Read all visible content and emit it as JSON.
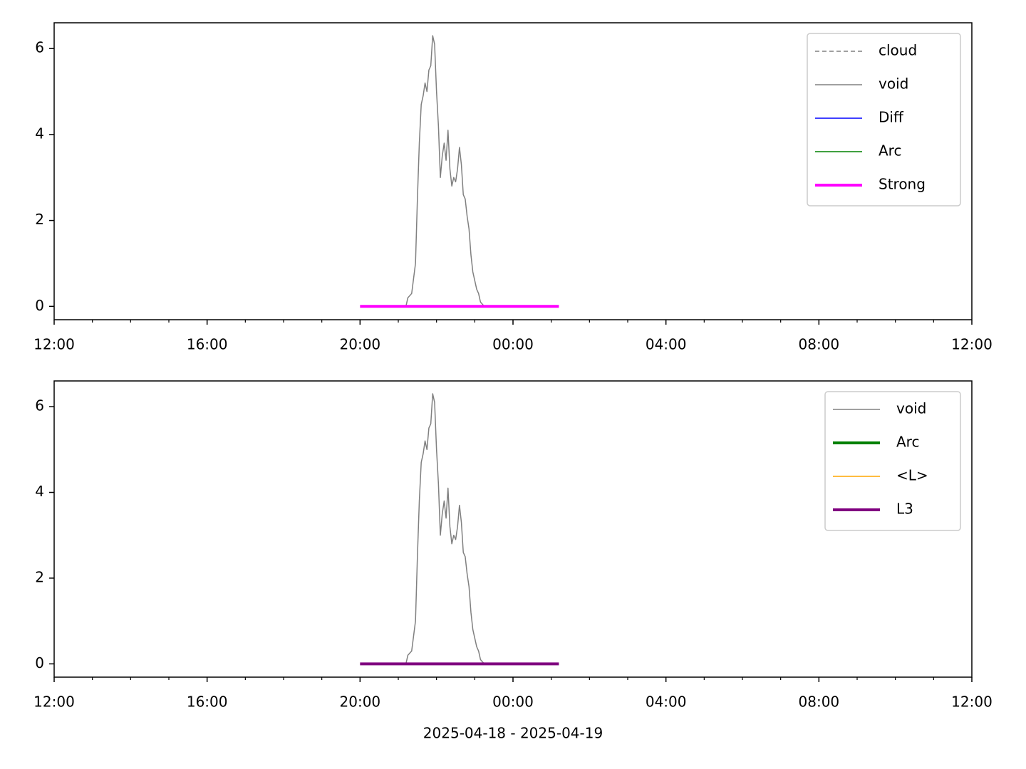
{
  "chart_data": [
    {
      "type": "line",
      "xlim": [
        0,
        24
      ],
      "ylim": [
        -0.31,
        6.6
      ],
      "xticks": [
        {
          "value": 0,
          "label": "12:00"
        },
        {
          "value": 4,
          "label": "16:00"
        },
        {
          "value": 8,
          "label": "20:00"
        },
        {
          "value": 12,
          "label": "00:00"
        },
        {
          "value": 16,
          "label": "04:00"
        },
        {
          "value": 20,
          "label": "08:00"
        },
        {
          "value": 24,
          "label": "12:00"
        }
      ],
      "xminorticks": [
        1,
        2,
        3,
        5,
        6,
        7,
        9,
        10,
        11,
        13,
        14,
        15,
        17,
        18,
        19,
        21,
        22,
        23
      ],
      "yticks": [
        0,
        2,
        4,
        6
      ],
      "legend": "upper right",
      "series": [
        {
          "name": "cloud",
          "color": "#808080",
          "dash": true,
          "width": 1.5,
          "x": [],
          "values": []
        },
        {
          "name": "void",
          "color": "#808080",
          "dash": false,
          "width": 1.5,
          "x": [
            9.2,
            9.25,
            9.35,
            9.45,
            9.5,
            9.55,
            9.6,
            9.65,
            9.7,
            9.75,
            9.8,
            9.85,
            9.9,
            9.95,
            10.0,
            10.05,
            10.1,
            10.15,
            10.2,
            10.25,
            10.3,
            10.35,
            10.4,
            10.45,
            10.5,
            10.55,
            10.6,
            10.65,
            10.7,
            10.75,
            10.8,
            10.85,
            10.9,
            10.95,
            11.0,
            11.05,
            11.1,
            11.15,
            11.25
          ],
          "values": [
            0,
            0.2,
            0.3,
            1,
            2.5,
            3.8,
            4.7,
            4.9,
            5.2,
            5.0,
            5.5,
            5.6,
            6.3,
            6.1,
            5.0,
            4.2,
            3.0,
            3.5,
            3.8,
            3.4,
            4.1,
            3.2,
            2.8,
            3.0,
            2.9,
            3.2,
            3.7,
            3.3,
            2.6,
            2.5,
            2.1,
            1.8,
            1.2,
            0.8,
            0.6,
            0.4,
            0.3,
            0.1,
            0
          ]
        },
        {
          "name": "Diff",
          "color": "#0000ff",
          "dash": false,
          "width": 1.5,
          "x": [],
          "values": []
        },
        {
          "name": "Arc",
          "color": "#008000",
          "dash": false,
          "width": 1.5,
          "x": [],
          "values": []
        },
        {
          "name": "Strong",
          "color": "#ff00ff",
          "dash": false,
          "width": 4,
          "x": [
            8,
            13.2
          ],
          "values": [
            0,
            0
          ]
        }
      ]
    },
    {
      "type": "line",
      "xlim": [
        0,
        24
      ],
      "ylim": [
        -0.31,
        6.6
      ],
      "xticks": [
        {
          "value": 0,
          "label": "12:00"
        },
        {
          "value": 4,
          "label": "16:00"
        },
        {
          "value": 8,
          "label": "20:00"
        },
        {
          "value": 12,
          "label": "00:00"
        },
        {
          "value": 16,
          "label": "04:00"
        },
        {
          "value": 20,
          "label": "08:00"
        },
        {
          "value": 24,
          "label": "12:00"
        }
      ],
      "xminorticks": [
        1,
        2,
        3,
        5,
        6,
        7,
        9,
        10,
        11,
        13,
        14,
        15,
        17,
        18,
        19,
        21,
        22,
        23
      ],
      "yticks": [
        0,
        2,
        4,
        6
      ],
      "xlabel": "2025-04-18 - 2025-04-19",
      "legend": "upper right",
      "series": [
        {
          "name": "void",
          "color": "#808080",
          "dash": false,
          "width": 1.5,
          "x": [
            9.2,
            9.25,
            9.35,
            9.45,
            9.5,
            9.55,
            9.6,
            9.65,
            9.7,
            9.75,
            9.8,
            9.85,
            9.9,
            9.95,
            10.0,
            10.05,
            10.1,
            10.15,
            10.2,
            10.25,
            10.3,
            10.35,
            10.4,
            10.45,
            10.5,
            10.55,
            10.6,
            10.65,
            10.7,
            10.75,
            10.8,
            10.85,
            10.9,
            10.95,
            11.0,
            11.05,
            11.1,
            11.15,
            11.25
          ],
          "values": [
            0,
            0.2,
            0.3,
            1,
            2.5,
            3.8,
            4.7,
            4.9,
            5.2,
            5.0,
            5.5,
            5.6,
            6.3,
            6.1,
            5.0,
            4.2,
            3.0,
            3.5,
            3.8,
            3.4,
            4.1,
            3.2,
            2.8,
            3.0,
            2.9,
            3.2,
            3.7,
            3.3,
            2.6,
            2.5,
            2.1,
            1.8,
            1.2,
            0.8,
            0.6,
            0.4,
            0.3,
            0.1,
            0
          ]
        },
        {
          "name": "Arc",
          "color": "#008000",
          "dash": false,
          "width": 4,
          "x": [],
          "values": []
        },
        {
          "name": "<L>",
          "color": "#ffa500",
          "dash": false,
          "width": 1.5,
          "x": [],
          "values": []
        },
        {
          "name": "L3",
          "color": "#800080",
          "dash": false,
          "width": 4,
          "x": [
            8,
            13.2
          ],
          "values": [
            0,
            0
          ]
        }
      ]
    }
  ]
}
